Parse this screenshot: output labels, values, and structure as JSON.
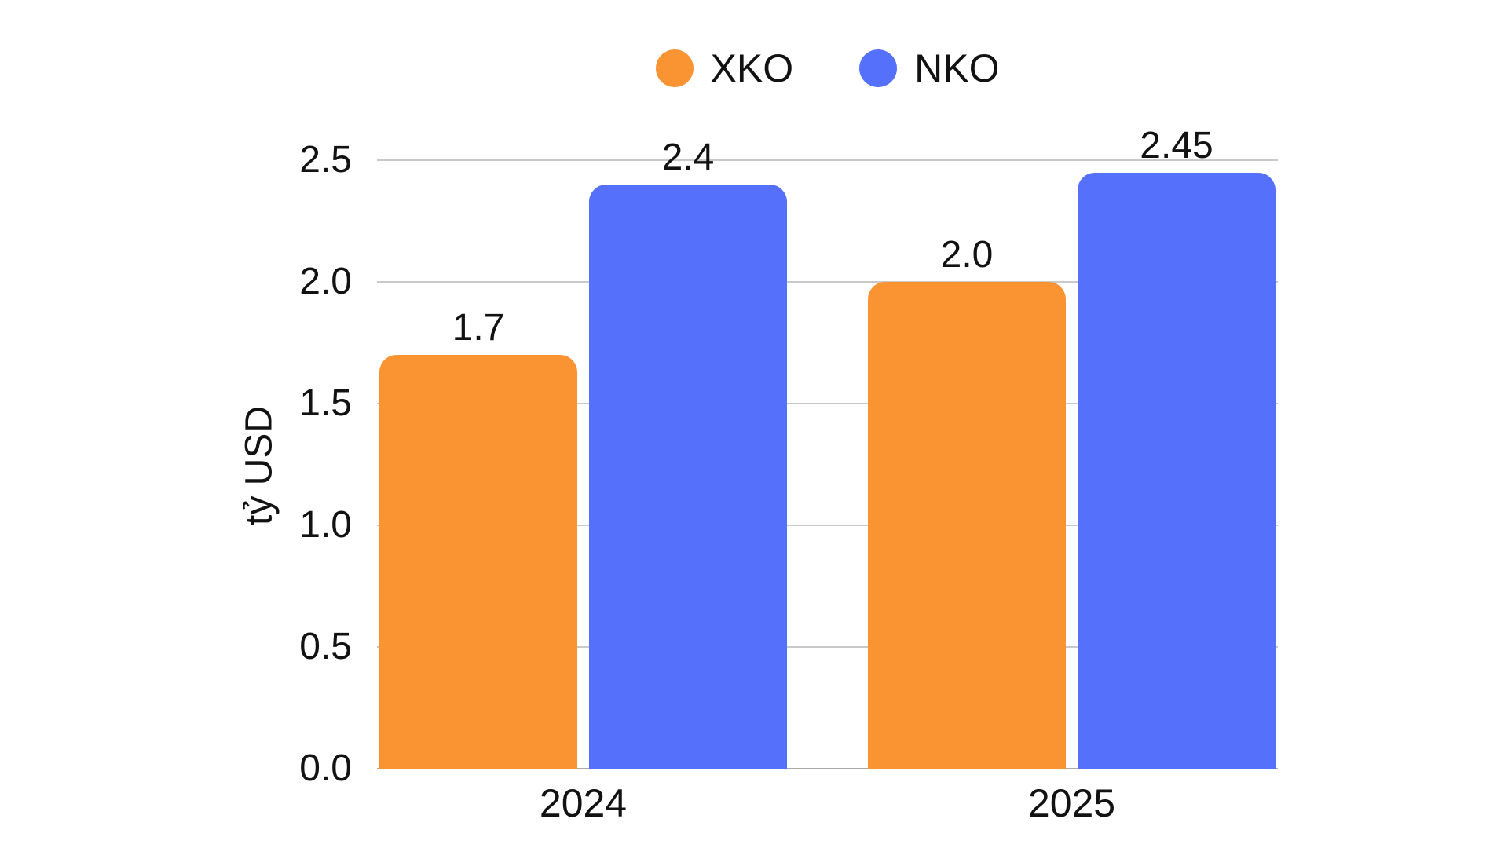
{
  "chart_data": {
    "type": "bar",
    "title": "",
    "xlabel": "",
    "ylabel": "tỷ USD",
    "categories": [
      "2024",
      "2025"
    ],
    "series": [
      {
        "name": "XKO",
        "color": "#FA9332",
        "values": [
          1.7,
          2.0
        ],
        "labels": [
          "1.7",
          "2.0"
        ]
      },
      {
        "name": "NKO",
        "color": "#5570FA",
        "values": [
          2.4,
          2.45
        ],
        "labels": [
          "2.4",
          "2.45"
        ]
      }
    ],
    "ylim": [
      0,
      2.5
    ],
    "yticks": [
      "0.0",
      "0.5",
      "1.0",
      "1.5",
      "2.0",
      "2.5"
    ],
    "grid": true,
    "legend_position": "top"
  },
  "colors": {
    "background": "#ffffff",
    "grid": "#c9c9c9",
    "axis": "#a9a9a9",
    "text": "#121212"
  }
}
